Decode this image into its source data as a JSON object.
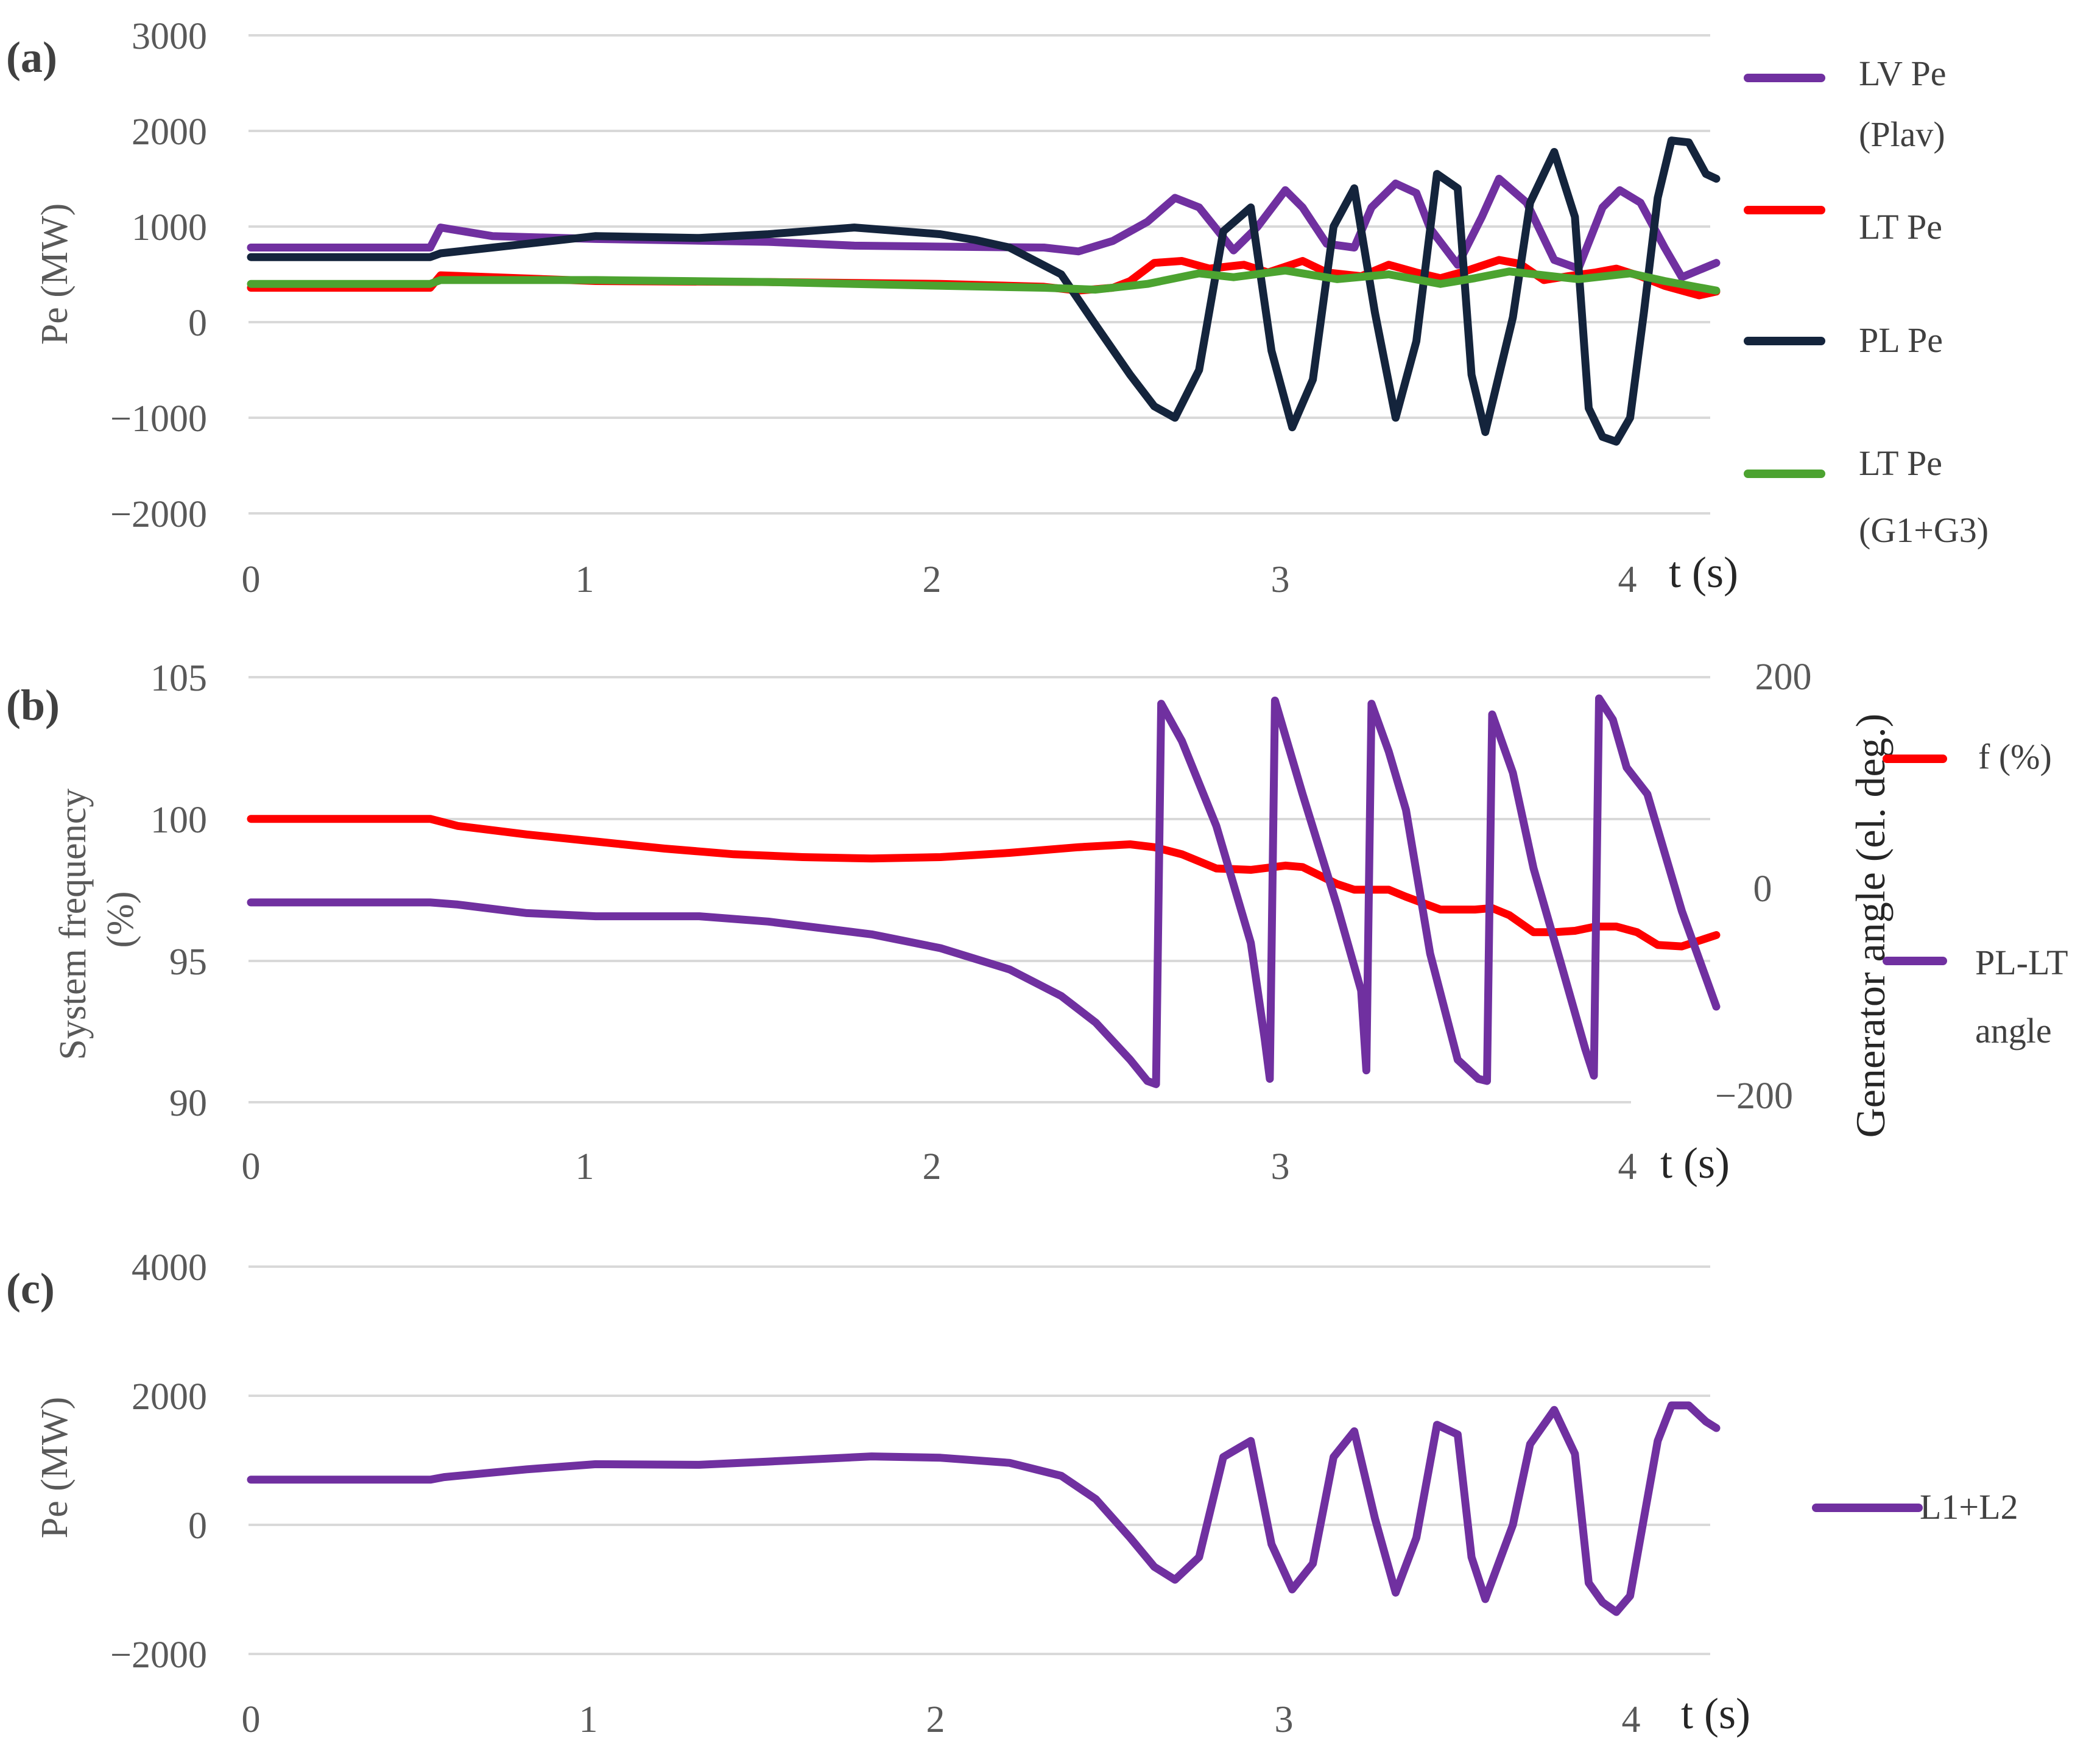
{
  "colors": {
    "purple": "#7030a0",
    "red": "#ff0000",
    "navy": "#14243c",
    "green": "#4ca330",
    "grid": "#d9d9d9",
    "text": "#595959"
  },
  "chart_data": [
    {
      "panel_label": "(a)",
      "type": "line",
      "xlabel": "t (s)",
      "ylabel": "Pe (MW)",
      "xlim": [
        0,
        4.25
      ],
      "ylim": [
        -2000,
        3000
      ],
      "x_ticks": [
        0,
        1,
        2,
        3,
        4
      ],
      "x_tick_labels": [
        "0",
        "1",
        "2",
        "3",
        "4"
      ],
      "y_ticks": [
        -2000,
        -1000,
        0,
        1000,
        2000,
        3000
      ],
      "y_tick_labels": [
        "−2000",
        "−1000",
        "0",
        "1000",
        "2000",
        "3000"
      ],
      "legend_position": "right",
      "series": [
        {
          "name": "LV Pe (Plav)",
          "legend": [
            "LV Pe",
            "(Plav)"
          ],
          "color": "#7030a0",
          "x": [
            0,
            0.52,
            0.55,
            0.7,
            1.0,
            1.5,
            1.75,
            2.0,
            2.3,
            2.4,
            2.5,
            2.6,
            2.68,
            2.75,
            2.85,
            2.92,
            3.0,
            3.05,
            3.12,
            3.2,
            3.25,
            3.32,
            3.38,
            3.42,
            3.5,
            3.57,
            3.62,
            3.7,
            3.78,
            3.85,
            3.92,
            3.97,
            4.03,
            4.1,
            4.15,
            4.25
          ],
          "y": [
            780,
            780,
            990,
            900,
            870,
            840,
            800,
            790,
            780,
            740,
            850,
            1050,
            1300,
            1200,
            750,
            1000,
            1380,
            1200,
            820,
            780,
            1200,
            1450,
            1350,
            980,
            600,
            1100,
            1500,
            1250,
            650,
            560,
            1200,
            1380,
            1250,
            780,
            470,
            620
          ]
        },
        {
          "name": "LT Pe",
          "legend": [
            "LT Pe"
          ],
          "color": "#ff0000",
          "x": [
            0,
            0.52,
            0.55,
            1.0,
            1.5,
            2.0,
            2.3,
            2.4,
            2.5,
            2.55,
            2.62,
            2.7,
            2.78,
            2.88,
            2.95,
            3.05,
            3.12,
            3.22,
            3.3,
            3.38,
            3.45,
            3.52,
            3.62,
            3.68,
            3.75,
            3.82,
            3.9,
            3.96,
            4.03,
            4.1,
            4.2,
            4.25
          ],
          "y": [
            360,
            360,
            490,
            430,
            420,
            400,
            370,
            330,
            360,
            430,
            620,
            640,
            560,
            600,
            520,
            640,
            520,
            480,
            600,
            520,
            460,
            530,
            650,
            610,
            440,
            480,
            520,
            560,
            480,
            380,
            280,
            320
          ]
        },
        {
          "name": "PL Pe",
          "legend": [
            "PL Pe"
          ],
          "color": "#14243c",
          "x": [
            0,
            0.52,
            0.55,
            0.8,
            1.0,
            1.3,
            1.5,
            1.75,
            2.0,
            2.1,
            2.2,
            2.35,
            2.45,
            2.55,
            2.62,
            2.68,
            2.75,
            2.82,
            2.9,
            2.96,
            3.02,
            3.08,
            3.14,
            3.2,
            3.26,
            3.32,
            3.38,
            3.44,
            3.5,
            3.54,
            3.58,
            3.66,
            3.71,
            3.78,
            3.84,
            3.88,
            3.92,
            3.96,
            4.0,
            4.04,
            4.08,
            4.12,
            4.17,
            4.22,
            4.25
          ],
          "y": [
            680,
            680,
            720,
            820,
            900,
            880,
            920,
            990,
            920,
            860,
            780,
            500,
            -30,
            -550,
            -880,
            -1000,
            -500,
            950,
            1200,
            -300,
            -1100,
            -600,
            1000,
            1400,
            100,
            -1000,
            -200,
            1550,
            1400,
            -550,
            -1150,
            50,
            1250,
            1780,
            1100,
            -900,
            -1200,
            -1250,
            -1000,
            100,
            1300,
            1900,
            1880,
            1550,
            1500
          ]
        },
        {
          "name": "LT Pe (G1+G3)",
          "legend": [
            "LT Pe",
            "(G1+G3)"
          ],
          "color": "#4ca330",
          "x": [
            0,
            0.52,
            0.55,
            1.0,
            1.5,
            2.0,
            2.3,
            2.45,
            2.6,
            2.75,
            2.85,
            3.0,
            3.15,
            3.3,
            3.45,
            3.55,
            3.65,
            3.75,
            3.85,
            4.0,
            4.1,
            4.25
          ],
          "y": [
            400,
            400,
            440,
            440,
            420,
            380,
            360,
            340,
            400,
            510,
            470,
            540,
            450,
            500,
            400,
            460,
            530,
            490,
            450,
            510,
            430,
            330
          ]
        }
      ]
    },
    {
      "panel_label": "(b)",
      "type": "line",
      "xlabel": "t (s)",
      "ylabel_left": [
        "System frequency",
        "(%)"
      ],
      "ylabel_right": "Generator angle (el. deg.)",
      "xlim": [
        0,
        4.25
      ],
      "ylim_left": [
        90,
        105
      ],
      "ylim_right": [
        -200,
        200
      ],
      "x_ticks": [
        0,
        1,
        2,
        3,
        4
      ],
      "x_tick_labels": [
        "0",
        "1",
        "2",
        "3",
        "4"
      ],
      "y_left_ticks": [
        90,
        95,
        100,
        105
      ],
      "y_left_tick_labels": [
        "90",
        "95",
        "100",
        "105"
      ],
      "y_right_ticks": [
        -200,
        0,
        200
      ],
      "y_right_tick_labels": [
        "−200",
        "0",
        "200"
      ],
      "legend_position": "right",
      "series": [
        {
          "name": "f (%)",
          "legend": [
            "f (%)"
          ],
          "axis": "left",
          "color": "#ff0000",
          "x": [
            0,
            0.52,
            0.6,
            0.8,
            1.0,
            1.2,
            1.4,
            1.6,
            1.8,
            2.0,
            2.2,
            2.4,
            2.55,
            2.62,
            2.7,
            2.8,
            2.9,
            3.0,
            3.05,
            3.15,
            3.2,
            3.3,
            3.35,
            3.45,
            3.55,
            3.6,
            3.65,
            3.72,
            3.78,
            3.84,
            3.9,
            3.96,
            4.02,
            4.08,
            4.15,
            4.25
          ],
          "y": [
            100,
            100,
            99.75,
            99.45,
            99.2,
            98.95,
            98.75,
            98.65,
            98.6,
            98.65,
            98.8,
            99.0,
            99.1,
            99.0,
            98.75,
            98.25,
            98.2,
            98.35,
            98.3,
            97.7,
            97.5,
            97.5,
            97.25,
            96.8,
            96.8,
            96.85,
            96.6,
            96.0,
            96.0,
            96.05,
            96.2,
            96.2,
            96.0,
            95.55,
            95.5,
            95.9
          ]
        },
        {
          "name": "PL-LT angle",
          "legend": [
            "PL-LT",
            "angle"
          ],
          "axis": "right",
          "color": "#7030a0",
          "x": [
            0,
            0.52,
            0.6,
            0.8,
            1.0,
            1.3,
            1.5,
            1.8,
            2.0,
            2.2,
            2.35,
            2.45,
            2.55,
            2.6,
            2.625,
            2.64,
            2.7,
            2.8,
            2.9,
            2.94,
            2.955,
            2.97,
            3.05,
            3.15,
            3.22,
            3.235,
            3.25,
            3.3,
            3.35,
            3.42,
            3.5,
            3.56,
            3.585,
            3.6,
            3.66,
            3.72,
            3.8,
            3.87,
            3.895,
            3.91,
            3.95,
            3.99,
            4.05,
            4.15,
            4.25
          ],
          "y": [
            -12,
            -12,
            -14,
            -22,
            -25,
            -25,
            -30,
            -42,
            -55,
            -75,
            -100,
            -125,
            -160,
            -180,
            -183,
            175,
            140,
            60,
            -50,
            -140,
            -178,
            178,
            90,
            -15,
            -95,
            -170,
            175,
            130,
            75,
            -60,
            -160,
            -178,
            -180,
            165,
            110,
            20,
            -70,
            -150,
            -175,
            180,
            160,
            115,
            90,
            -20,
            -110
          ]
        }
      ]
    },
    {
      "panel_label": "(c)",
      "type": "line",
      "xlabel": "t (s)",
      "ylabel": "Pe (MW)",
      "xlim": [
        0,
        4.25
      ],
      "ylim": [
        -2000,
        4000
      ],
      "x_ticks": [
        0,
        1,
        2,
        3,
        4
      ],
      "x_tick_labels": [
        "0",
        "1",
        "2",
        "3",
        "4"
      ],
      "y_ticks": [
        -2000,
        0,
        2000,
        4000
      ],
      "y_tick_labels": [
        "−2000",
        "0",
        "2000",
        "4000"
      ],
      "legend_position": "right",
      "series": [
        {
          "name": "L1+L2",
          "legend": [
            "L1+L2"
          ],
          "color": "#7030a0",
          "x": [
            0,
            0.52,
            0.56,
            0.8,
            1.0,
            1.3,
            1.5,
            1.8,
            2.0,
            2.2,
            2.35,
            2.45,
            2.55,
            2.62,
            2.68,
            2.75,
            2.82,
            2.9,
            2.96,
            3.02,
            3.08,
            3.14,
            3.2,
            3.26,
            3.32,
            3.38,
            3.44,
            3.5,
            3.54,
            3.58,
            3.66,
            3.71,
            3.78,
            3.84,
            3.88,
            3.92,
            3.96,
            4.0,
            4.04,
            4.08,
            4.12,
            4.17,
            4.22,
            4.25
          ],
          "y": [
            700,
            700,
            740,
            860,
            940,
            930,
            980,
            1060,
            1040,
            960,
            760,
            400,
            -200,
            -650,
            -850,
            -500,
            1050,
            1300,
            -300,
            -1000,
            -600,
            1050,
            1450,
            100,
            -1050,
            -200,
            1550,
            1400,
            -500,
            -1150,
            0,
            1250,
            1780,
            1100,
            -900,
            -1200,
            -1350,
            -1100,
            100,
            1300,
            1850,
            1850,
            1600,
            1500
          ]
        }
      ]
    }
  ]
}
